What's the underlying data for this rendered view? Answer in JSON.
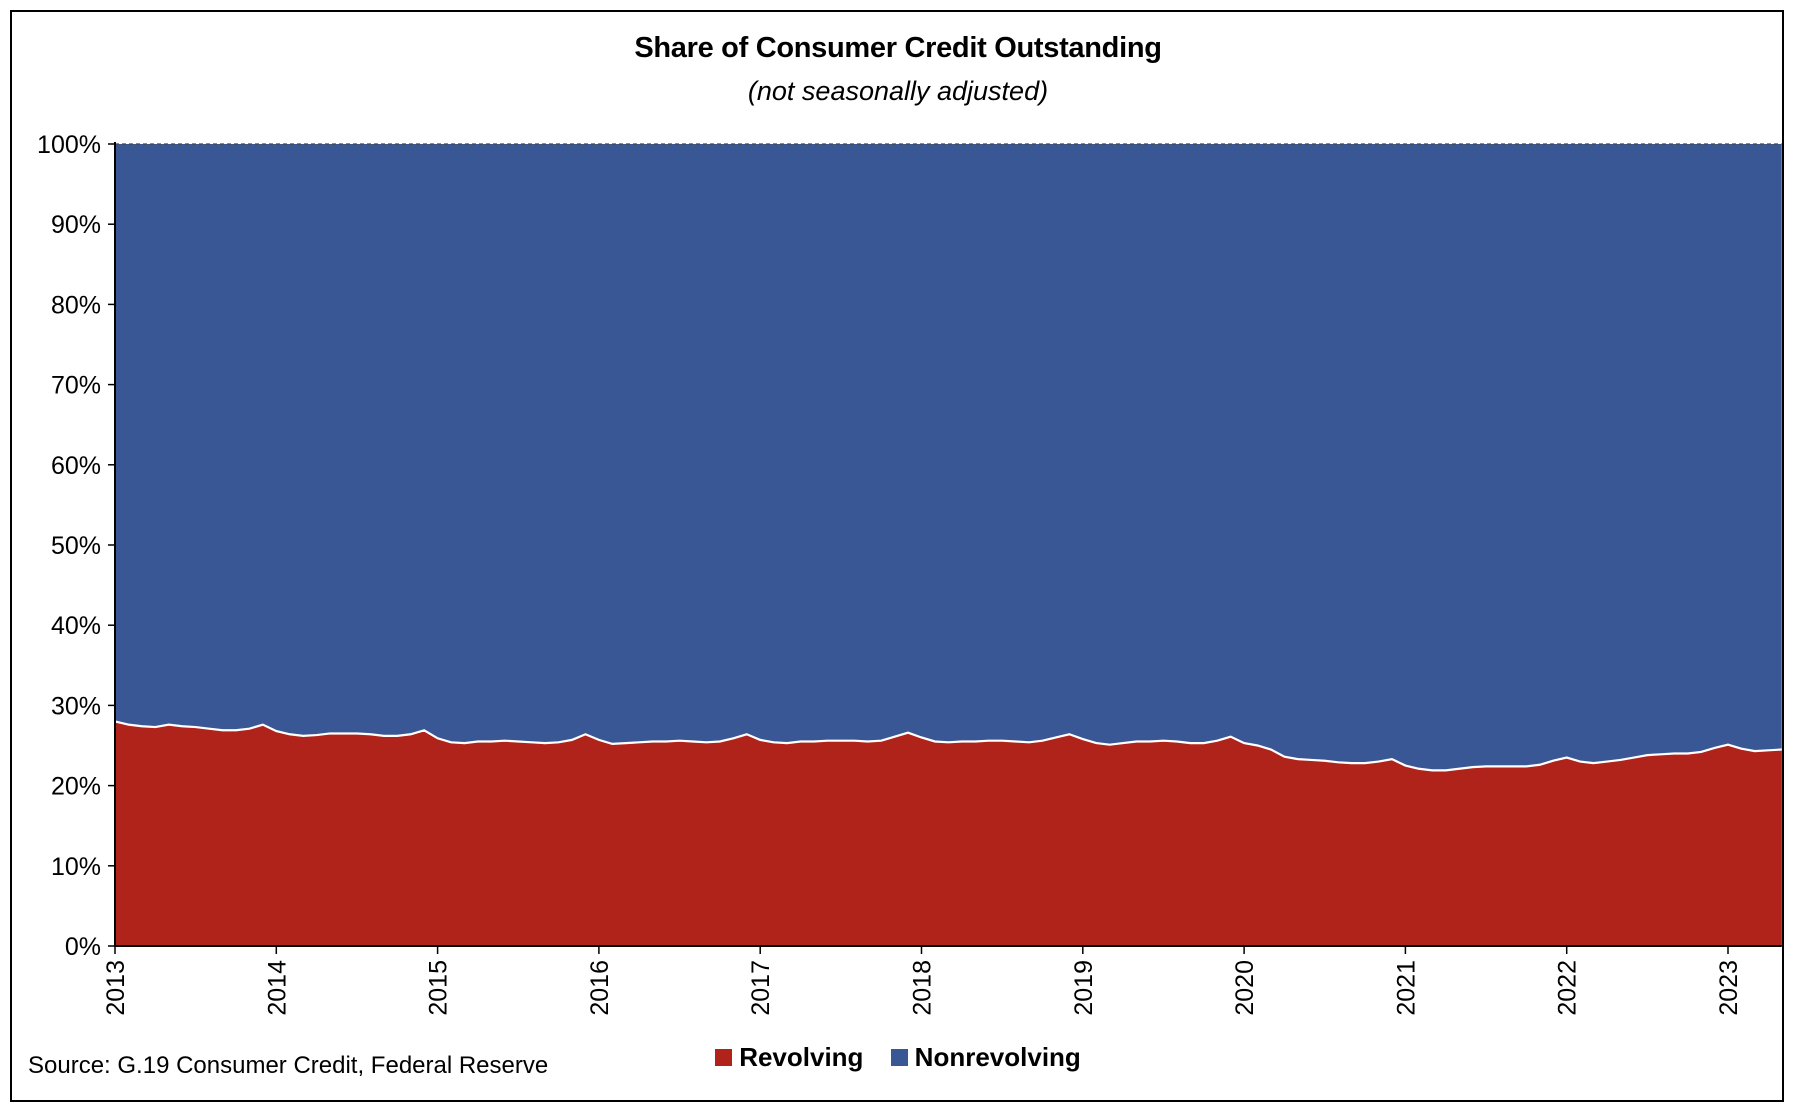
{
  "colors": {
    "revolving": "#B0231A",
    "nonrevolving": "#3A5795",
    "boundary": "#ffffff"
  },
  "chart_data": {
    "type": "area",
    "stacked": true,
    "normalized": true,
    "title": "Share of Consumer Credit Outstanding",
    "subtitle": "(not seasonally adjusted)",
    "source": "Source: G.19 Consumer Credit, Federal Reserve",
    "ylim": [
      0,
      100
    ],
    "y_ticks": [
      "0%",
      "10%",
      "20%",
      "30%",
      "40%",
      "50%",
      "60%",
      "70%",
      "80%",
      "90%",
      "100%"
    ],
    "x_ticks": [
      "2013",
      "2014",
      "2015",
      "2016",
      "2017",
      "2018",
      "2019",
      "2020",
      "2021",
      "2022",
      "2023"
    ],
    "x_start": "2013-01",
    "legend_position": "bottom",
    "series": [
      {
        "name": "Revolving",
        "values": [
          28.0,
          27.6,
          27.4,
          27.3,
          27.6,
          27.4,
          27.3,
          27.1,
          26.9,
          26.9,
          27.1,
          27.6,
          26.8,
          26.4,
          26.2,
          26.3,
          26.5,
          26.5,
          26.5,
          26.4,
          26.2,
          26.2,
          26.4,
          26.9,
          25.9,
          25.4,
          25.3,
          25.5,
          25.5,
          25.6,
          25.5,
          25.4,
          25.3,
          25.4,
          25.7,
          26.4,
          25.7,
          25.2,
          25.3,
          25.4,
          25.5,
          25.5,
          25.6,
          25.5,
          25.4,
          25.5,
          25.9,
          26.4,
          25.7,
          25.4,
          25.3,
          25.5,
          25.5,
          25.6,
          25.6,
          25.6,
          25.5,
          25.6,
          26.1,
          26.6,
          26.0,
          25.5,
          25.4,
          25.5,
          25.5,
          25.6,
          25.6,
          25.5,
          25.4,
          25.6,
          26.0,
          26.4,
          25.8,
          25.3,
          25.1,
          25.3,
          25.5,
          25.5,
          25.6,
          25.5,
          25.3,
          25.3,
          25.6,
          26.1,
          25.3,
          25.0,
          24.5,
          23.6,
          23.3,
          23.2,
          23.1,
          22.9,
          22.8,
          22.8,
          23.0,
          23.3,
          22.5,
          22.1,
          21.9,
          21.9,
          22.1,
          22.3,
          22.4,
          22.4,
          22.4,
          22.4,
          22.6,
          23.1,
          23.5,
          23.0,
          22.8,
          23.0,
          23.2,
          23.5,
          23.8,
          23.9,
          24.0,
          24.0,
          24.2,
          24.7,
          25.1,
          24.6,
          24.3,
          24.4,
          24.5
        ]
      },
      {
        "name": "Nonrevolving",
        "note_complement": true
      }
    ]
  }
}
